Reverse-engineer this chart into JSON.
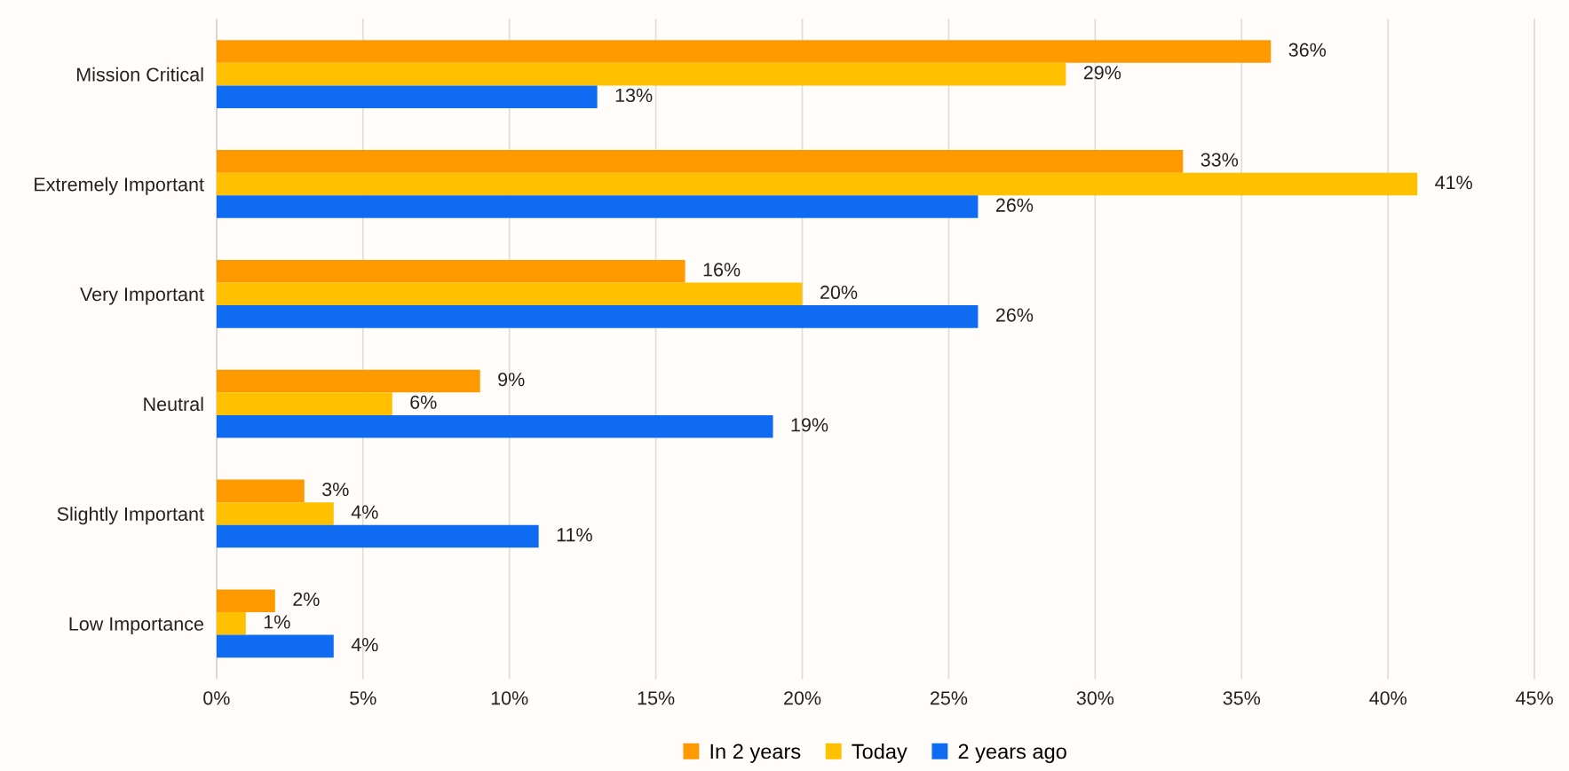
{
  "chart_data": {
    "type": "bar",
    "orientation": "horizontal",
    "categories": [
      "Mission Critical",
      "Extremely Important",
      "Very Important",
      "Neutral",
      "Slightly Important",
      "Low Importance"
    ],
    "series": [
      {
        "name": "In 2 years",
        "color": "#ff9900",
        "values": [
          36,
          33,
          16,
          9,
          3,
          2
        ]
      },
      {
        "name": "Today",
        "color": "#ffc000",
        "values": [
          29,
          41,
          20,
          6,
          4,
          1
        ]
      },
      {
        "name": "2 years ago",
        "color": "#0f6cf2",
        "values": [
          13,
          26,
          26,
          19,
          11,
          4
        ]
      }
    ],
    "xlim": [
      0,
      45
    ],
    "xticks": [
      {
        "value": 0,
        "label": "0%"
      },
      {
        "value": 5,
        "label": "5%"
      },
      {
        "value": 10,
        "label": "10%"
      },
      {
        "value": 15,
        "label": "15%"
      },
      {
        "value": 20,
        "label": "20%"
      },
      {
        "value": 25,
        "label": "25%"
      },
      {
        "value": 30,
        "label": "30%"
      },
      {
        "value": 35,
        "label": "35%"
      },
      {
        "value": 40,
        "label": "40%"
      },
      {
        "value": 45,
        "label": "45%"
      }
    ],
    "value_labels": [
      [
        "36%",
        "33%",
        "16%",
        "9%",
        "3%",
        "2%"
      ],
      [
        "29%",
        "41%",
        "20%",
        "6%",
        "4%",
        "1%"
      ],
      [
        "13%",
        "26%",
        "26%",
        "19%",
        "11%",
        "4%"
      ]
    ],
    "grid": "x",
    "legend": "bottom"
  }
}
